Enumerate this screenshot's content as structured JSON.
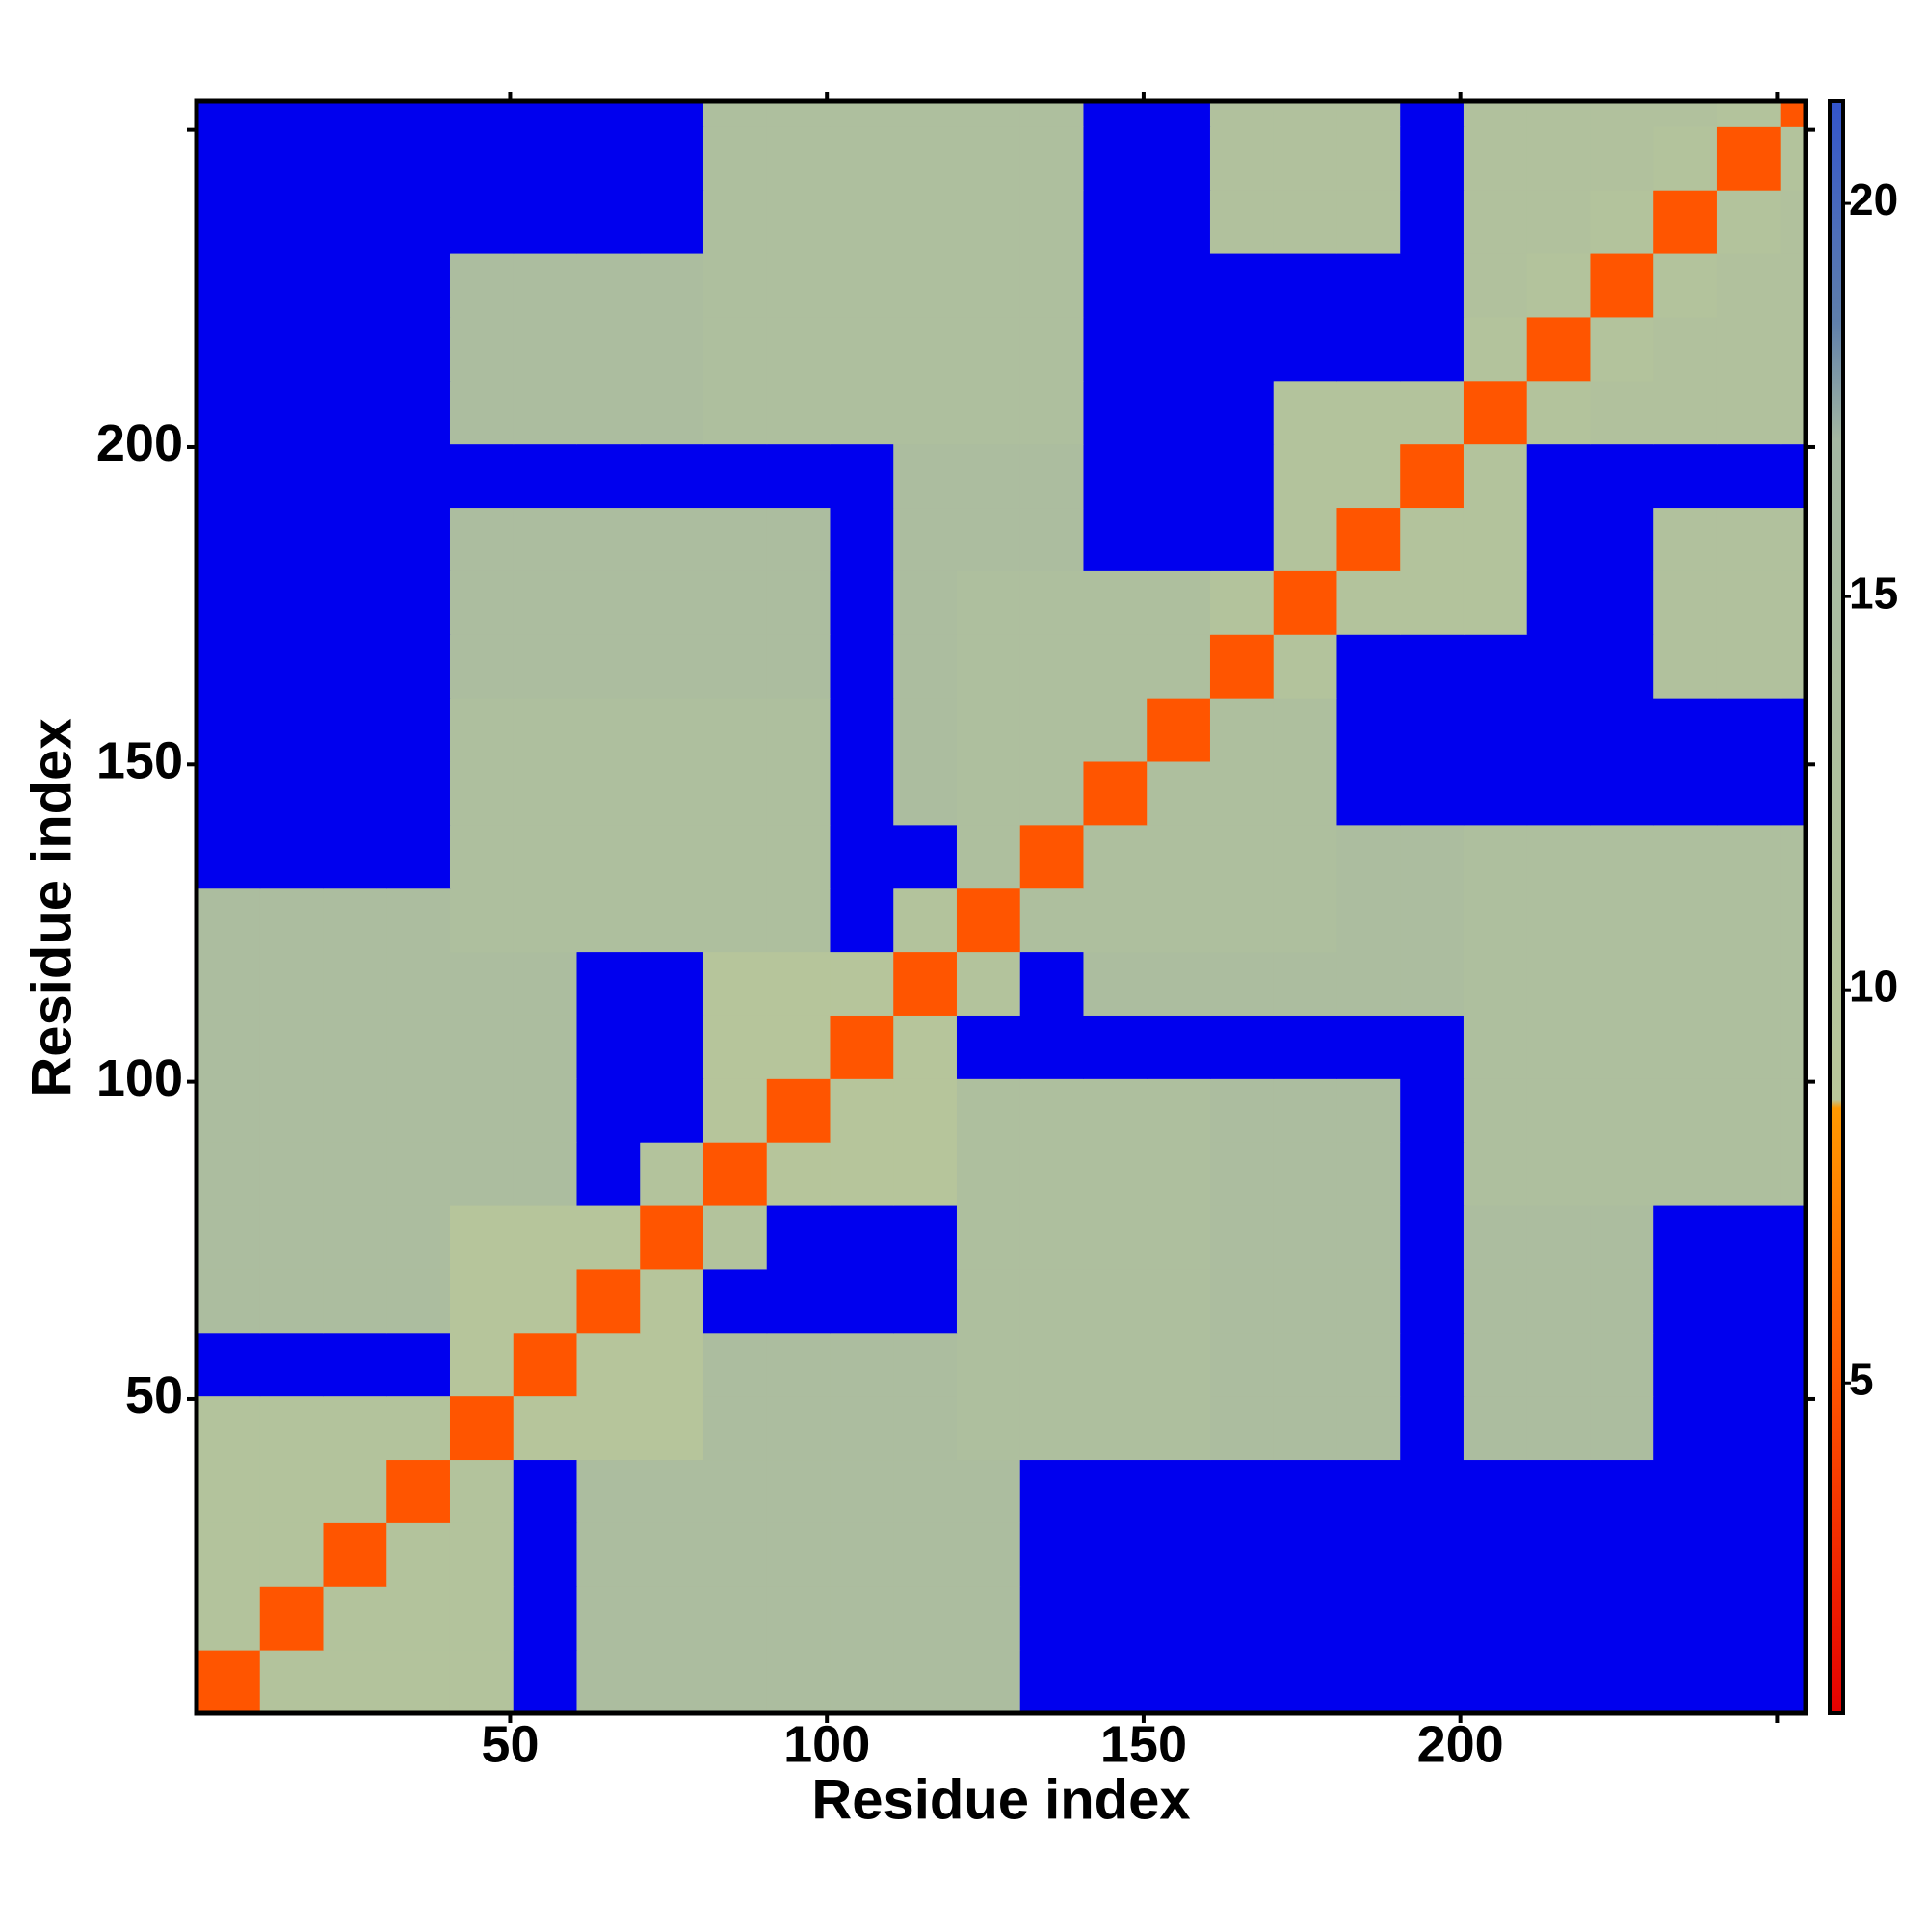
{
  "chart_data": {
    "type": "heatmap",
    "x_label": "Residue index",
    "y_label": "Residue index",
    "x_bins": [
      0.5,
      10.5,
      20.5,
      30.5,
      40.5,
      50.5,
      60.5,
      70.5,
      80.5,
      90.5,
      100.5,
      110.5,
      120.5,
      130.5,
      140.5,
      150.5,
      160.5,
      170.5,
      180.5,
      190.5,
      200.5,
      210.5,
      220.5,
      230.5,
      240.5,
      250.5,
      254.5
    ],
    "y_bins": [
      0.5,
      10.5,
      20.5,
      30.5,
      40.5,
      50.5,
      60.5,
      70.5,
      80.5,
      90.5,
      100.5,
      110.5,
      120.5,
      130.5,
      140.5,
      150.5,
      160.5,
      170.5,
      180.5,
      190.5,
      200.5,
      210.5,
      220.5,
      230.5,
      240.5,
      250.5,
      254.5
    ],
    "z": [
      [
        5,
        11,
        11,
        11,
        11,
        25,
        14,
        14,
        14,
        14,
        14,
        14,
        14,
        25,
        25,
        25,
        25,
        25,
        25,
        25,
        25,
        25,
        25,
        25,
        25,
        25
      ],
      [
        11,
        5,
        11,
        11,
        11,
        25,
        14,
        14,
        14,
        14,
        14,
        14,
        14,
        25,
        25,
        25,
        25,
        25,
        25,
        25,
        25,
        25,
        25,
        25,
        25,
        25
      ],
      [
        11,
        11,
        5,
        11,
        11,
        25,
        14,
        14,
        14,
        14,
        14,
        14,
        14,
        25,
        25,
        25,
        25,
        25,
        25,
        25,
        25,
        25,
        25,
        25,
        25,
        25
      ],
      [
        11,
        11,
        11,
        5,
        11,
        25,
        14,
        14,
        14,
        14,
        14,
        14,
        14,
        25,
        25,
        25,
        25,
        25,
        25,
        25,
        25,
        25,
        25,
        25,
        25,
        25
      ],
      [
        11,
        11,
        11,
        11,
        5,
        10,
        10,
        10,
        14,
        14,
        14,
        14,
        13,
        13,
        13,
        13,
        14,
        14,
        14,
        25,
        14,
        14,
        14,
        25,
        25,
        25
      ],
      [
        25,
        25,
        25,
        25,
        10,
        5,
        10,
        10,
        14,
        14,
        14,
        14,
        13,
        13,
        13,
        13,
        14,
        14,
        14,
        25,
        14,
        14,
        14,
        25,
        25,
        25
      ],
      [
        14,
        14,
        14,
        14,
        10,
        10,
        5,
        10,
        25,
        25,
        25,
        25,
        13,
        13,
        13,
        13,
        14,
        14,
        14,
        25,
        14,
        14,
        14,
        25,
        25,
        25
      ],
      [
        14,
        14,
        14,
        14,
        10,
        10,
        10,
        5,
        11,
        25,
        25,
        25,
        13,
        13,
        13,
        13,
        14,
        14,
        14,
        25,
        14,
        14,
        14,
        25,
        25,
        25
      ],
      [
        14,
        14,
        14,
        14,
        14,
        14,
        25,
        11,
        5,
        10,
        10,
        10,
        13,
        13,
        13,
        13,
        14,
        14,
        14,
        25,
        13,
        13,
        13,
        13,
        13,
        13
      ],
      [
        14,
        14,
        14,
        14,
        14,
        14,
        25,
        25,
        10,
        5,
        10,
        10,
        13,
        13,
        13,
        13,
        14,
        14,
        14,
        25,
        13,
        13,
        13,
        13,
        13,
        13
      ],
      [
        14,
        14,
        14,
        14,
        14,
        14,
        25,
        25,
        10,
        10,
        5,
        10,
        25,
        25,
        25,
        25,
        25,
        25,
        25,
        25,
        13,
        13,
        13,
        13,
        13,
        13
      ],
      [
        14,
        14,
        14,
        14,
        14,
        14,
        25,
        25,
        10,
        10,
        10,
        5,
        11,
        25,
        14,
        14,
        14,
        14,
        14,
        14,
        13,
        13,
        13,
        13,
        13,
        13
      ],
      [
        14,
        14,
        14,
        14,
        13,
        13,
        13,
        13,
        13,
        13,
        25,
        11,
        5,
        13,
        13,
        13,
        13,
        13,
        14,
        14,
        13,
        13,
        13,
        13,
        13,
        13
      ],
      [
        25,
        25,
        25,
        25,
        13,
        13,
        13,
        13,
        13,
        13,
        25,
        25,
        13,
        5,
        13,
        13,
        13,
        13,
        14,
        14,
        13,
        13,
        13,
        13,
        13,
        13
      ],
      [
        25,
        25,
        25,
        25,
        13,
        13,
        13,
        13,
        13,
        13,
        25,
        14,
        13,
        13,
        5,
        13,
        13,
        13,
        25,
        25,
        25,
        25,
        25,
        25,
        25,
        25
      ],
      [
        25,
        25,
        25,
        25,
        13,
        13,
        13,
        13,
        13,
        13,
        25,
        14,
        13,
        13,
        13,
        5,
        13,
        13,
        25,
        25,
        25,
        25,
        25,
        25,
        25,
        25
      ],
      [
        25,
        25,
        25,
        25,
        14,
        14,
        14,
        14,
        14,
        14,
        25,
        14,
        13,
        13,
        13,
        13,
        5,
        11,
        25,
        25,
        25,
        25,
        25,
        12,
        12,
        12
      ],
      [
        25,
        25,
        25,
        25,
        14,
        14,
        14,
        14,
        14,
        14,
        25,
        14,
        13,
        13,
        13,
        13,
        11,
        5,
        11,
        11,
        11,
        25,
        25,
        12,
        12,
        12
      ],
      [
        25,
        25,
        25,
        25,
        14,
        14,
        14,
        14,
        14,
        14,
        25,
        14,
        14,
        14,
        25,
        25,
        25,
        11,
        5,
        11,
        11,
        25,
        25,
        12,
        12,
        12
      ],
      [
        25,
        25,
        25,
        25,
        25,
        25,
        25,
        25,
        25,
        25,
        25,
        14,
        14,
        14,
        25,
        25,
        25,
        11,
        11,
        5,
        11,
        25,
        25,
        25,
        25,
        25
      ],
      [
        25,
        25,
        25,
        25,
        14,
        14,
        14,
        14,
        13,
        13,
        13,
        13,
        13,
        13,
        25,
        25,
        25,
        11,
        11,
        11,
        5,
        11,
        12,
        12,
        12,
        12
      ],
      [
        25,
        25,
        25,
        25,
        14,
        14,
        14,
        14,
        13,
        13,
        13,
        13,
        13,
        13,
        25,
        25,
        25,
        25,
        25,
        25,
        11,
        5,
        11,
        12,
        12,
        12
      ],
      [
        25,
        25,
        25,
        25,
        14,
        14,
        14,
        14,
        13,
        13,
        13,
        13,
        13,
        13,
        25,
        25,
        25,
        25,
        25,
        25,
        12,
        11,
        5,
        11,
        12,
        12
      ],
      [
        25,
        25,
        25,
        25,
        25,
        25,
        25,
        25,
        13,
        13,
        13,
        13,
        13,
        13,
        25,
        25,
        12,
        12,
        12,
        25,
        12,
        12,
        11,
        5,
        11,
        12
      ],
      [
        25,
        25,
        25,
        25,
        25,
        25,
        25,
        25,
        13,
        13,
        13,
        13,
        13,
        13,
        25,
        25,
        12,
        12,
        12,
        25,
        12,
        12,
        12,
        11,
        5,
        11
      ],
      [
        25,
        25,
        25,
        25,
        25,
        25,
        25,
        25,
        13,
        13,
        13,
        13,
        13,
        13,
        25,
        25,
        12,
        12,
        12,
        25,
        12,
        12,
        12,
        12,
        11,
        5
      ]
    ],
    "xlim": [
      0.5,
      254.5
    ],
    "ylim": [
      0.5,
      254.5
    ],
    "xticks": [
      50,
      100,
      150,
      200
    ],
    "yticks": [
      50,
      100,
      150,
      200
    ],
    "xticks_minor": [
      250
    ],
    "yticks_minor": [
      250
    ],
    "colorbar": {
      "lim": [
        0.8,
        21.3
      ],
      "ticks": [
        5,
        10,
        15,
        20
      ],
      "stops": [
        {
          "value": 0.8,
          "color": "#e60000"
        },
        {
          "value": 5,
          "color": "#ff5500"
        },
        {
          "value": 8.5,
          "color": "#ff9900"
        },
        {
          "value": 8.6,
          "color": "#b9c79a"
        },
        {
          "value": 17,
          "color": "#a4b8a2"
        },
        {
          "value": 18.5,
          "color": "#5f7fab"
        },
        {
          "value": 21.3,
          "color": "#3355cc"
        }
      ],
      "over_color": "#0000ee"
    }
  }
}
